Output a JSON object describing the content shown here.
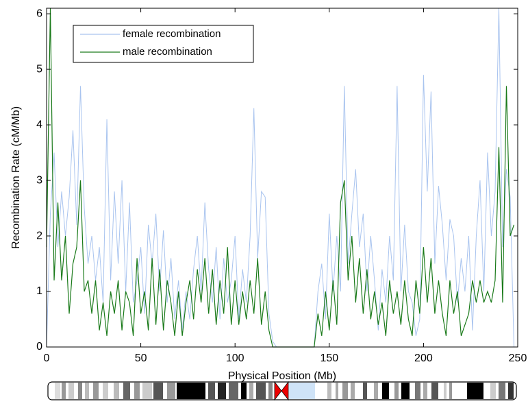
{
  "chart_data": {
    "type": "line",
    "xlabel": "Physical Position (Mb)",
    "ylabel": "Recombination Rate (cM/Mb)",
    "x": [
      0,
      2,
      4,
      6,
      8,
      10,
      12,
      14,
      16,
      18,
      20,
      22,
      24,
      26,
      28,
      30,
      32,
      34,
      36,
      38,
      40,
      42,
      44,
      46,
      48,
      50,
      52,
      54,
      56,
      58,
      60,
      62,
      64,
      66,
      68,
      70,
      72,
      74,
      76,
      78,
      80,
      82,
      84,
      86,
      88,
      90,
      92,
      94,
      96,
      98,
      100,
      102,
      104,
      106,
      108,
      110,
      112,
      114,
      116,
      118,
      120,
      122,
      124,
      126,
      128,
      130,
      132,
      134,
      136,
      138,
      140,
      142,
      144,
      146,
      148,
      150,
      152,
      154,
      156,
      158,
      160,
      162,
      164,
      166,
      168,
      170,
      172,
      174,
      176,
      178,
      180,
      182,
      184,
      186,
      188,
      190,
      192,
      194,
      196,
      198,
      200,
      202,
      204,
      206,
      208,
      210,
      212,
      214,
      216,
      218,
      220,
      222,
      224,
      226,
      228,
      230,
      232,
      234,
      236,
      238,
      240,
      242,
      244,
      246,
      248
    ],
    "series": [
      {
        "name": "female recombination",
        "color": "#a9c4ef",
        "values": [
          0,
          2.4,
          3.5,
          1.8,
          2.8,
          2.0,
          2.7,
          3.9,
          2.2,
          4.7,
          2.5,
          1.5,
          2.0,
          1.2,
          1.8,
          0.8,
          4.1,
          1.2,
          2.8,
          1.5,
          3.0,
          1.0,
          2.6,
          0.8,
          1.2,
          1.8,
          0.6,
          2.2,
          1.5,
          2.4,
          1.0,
          2.1,
          0.8,
          1.6,
          0.5,
          1.2,
          0.3,
          1.0,
          0.5,
          1.4,
          2.0,
          1.0,
          2.6,
          1.4,
          0.8,
          1.8,
          0.5,
          1.6,
          0.8,
          1.2,
          2.0,
          0.5,
          1.4,
          0.8,
          2.0,
          4.3,
          1.6,
          2.8,
          2.7,
          0.6,
          0.1,
          0,
          0,
          0,
          0,
          0,
          0,
          0,
          0,
          0,
          0,
          0,
          1.0,
          1.5,
          0.5,
          2.4,
          1.0,
          2.0,
          1.0,
          4.7,
          1.5,
          2.4,
          3.2,
          1.8,
          2.4,
          1.0,
          2.0,
          1.2,
          0.3,
          1.4,
          0.8,
          2.0,
          1.2,
          4.7,
          1.0,
          2.2,
          1.0,
          0.8,
          0.2,
          0.5,
          4.9,
          2.8,
          4.6,
          1.5,
          2.9,
          2.2,
          1.2,
          2.3,
          2.0,
          0.8,
          1.6,
          1.0,
          2.0,
          0.3,
          2.0,
          3.0,
          1.0,
          3.5,
          2.0,
          2.8,
          6.1,
          1.8,
          3.2,
          2.7,
          0
        ]
      },
      {
        "name": "male recombination",
        "color": "#1a7a1a",
        "values": [
          1.8,
          6.1,
          1.2,
          2.6,
          1.2,
          2.0,
          0.6,
          1.5,
          1.8,
          3.0,
          1.0,
          1.2,
          0.6,
          1.2,
          0.3,
          0.8,
          0.2,
          1.0,
          0.6,
          1.2,
          0.3,
          1.0,
          0.8,
          0.2,
          1.6,
          0.6,
          1.0,
          0.3,
          1.6,
          0.4,
          1.4,
          0.3,
          1.2,
          0.8,
          0.2,
          1.0,
          0.2,
          0.8,
          1.2,
          0.5,
          1.4,
          0.8,
          1.6,
          0.6,
          1.4,
          0.4,
          1.2,
          0.6,
          1.8,
          0.4,
          1.2,
          0.4,
          1.0,
          0.5,
          1.2,
          0.6,
          1.6,
          0.4,
          1.0,
          0.3,
          0,
          0,
          0,
          0,
          0,
          0,
          0,
          0,
          0,
          0,
          0,
          0,
          0.6,
          0.2,
          1.0,
          0.3,
          1.2,
          0.4,
          2.6,
          3.0,
          1.2,
          2.0,
          0.8,
          1.6,
          0.6,
          1.4,
          0.5,
          1.0,
          0.4,
          0.8,
          0.2,
          1.2,
          0.6,
          1.0,
          0.4,
          1.2,
          0.5,
          0.2,
          1.2,
          0.6,
          1.8,
          0.8,
          1.6,
          0.6,
          1.2,
          0.6,
          0.2,
          1.2,
          0.6,
          1.0,
          0.2,
          0.4,
          0.6,
          1.2,
          0.8,
          1.2,
          0.8,
          1.0,
          0.8,
          1.2,
          3.6,
          0.8,
          4.7,
          2.0,
          2.2
        ]
      }
    ],
    "xlim": [
      0,
      250
    ],
    "xticks": [
      0,
      50,
      100,
      150,
      200,
      250
    ],
    "ylim": [
      0,
      6.1
    ],
    "yticks": [
      0,
      1,
      2,
      3,
      4,
      5,
      6
    ],
    "legend": "upper left"
  }
}
